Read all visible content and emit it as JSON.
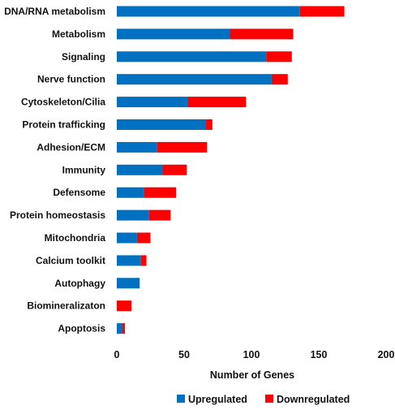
{
  "chart_data": {
    "type": "bar",
    "orientation": "horizontal",
    "stacked": true,
    "categories": [
      "DNA/RNA metabolism",
      "Metabolism",
      "Signaling",
      "Nerve function",
      "Cytoskeleton/Cilia",
      "Protein trafficking",
      "Adhesion/ECM",
      "Immunity",
      "Defensome",
      "Protein homeostasis",
      "Mitochondria",
      "Calcium toolkit",
      "Autophagy",
      "Biomineralizaton",
      "Apoptosis"
    ],
    "series": [
      {
        "name": "Upregulated",
        "color": "#0070C0",
        "values": [
          136,
          84,
          111,
          115,
          53,
          66,
          30,
          34,
          20,
          24,
          15,
          18,
          17,
          0,
          4
        ]
      },
      {
        "name": "Downregulated",
        "color": "#FF0000",
        "values": [
          33,
          47,
          19,
          12,
          43,
          5,
          37,
          18,
          24,
          16,
          10,
          4,
          0,
          11,
          2
        ]
      }
    ],
    "xlabel": "Number of Genes",
    "ylabel": "",
    "title": "",
    "xlim": [
      0,
      200
    ],
    "xticks": [
      "0",
      "50",
      "100",
      "150",
      "200"
    ],
    "grid": false,
    "legend_position": "bottom"
  }
}
